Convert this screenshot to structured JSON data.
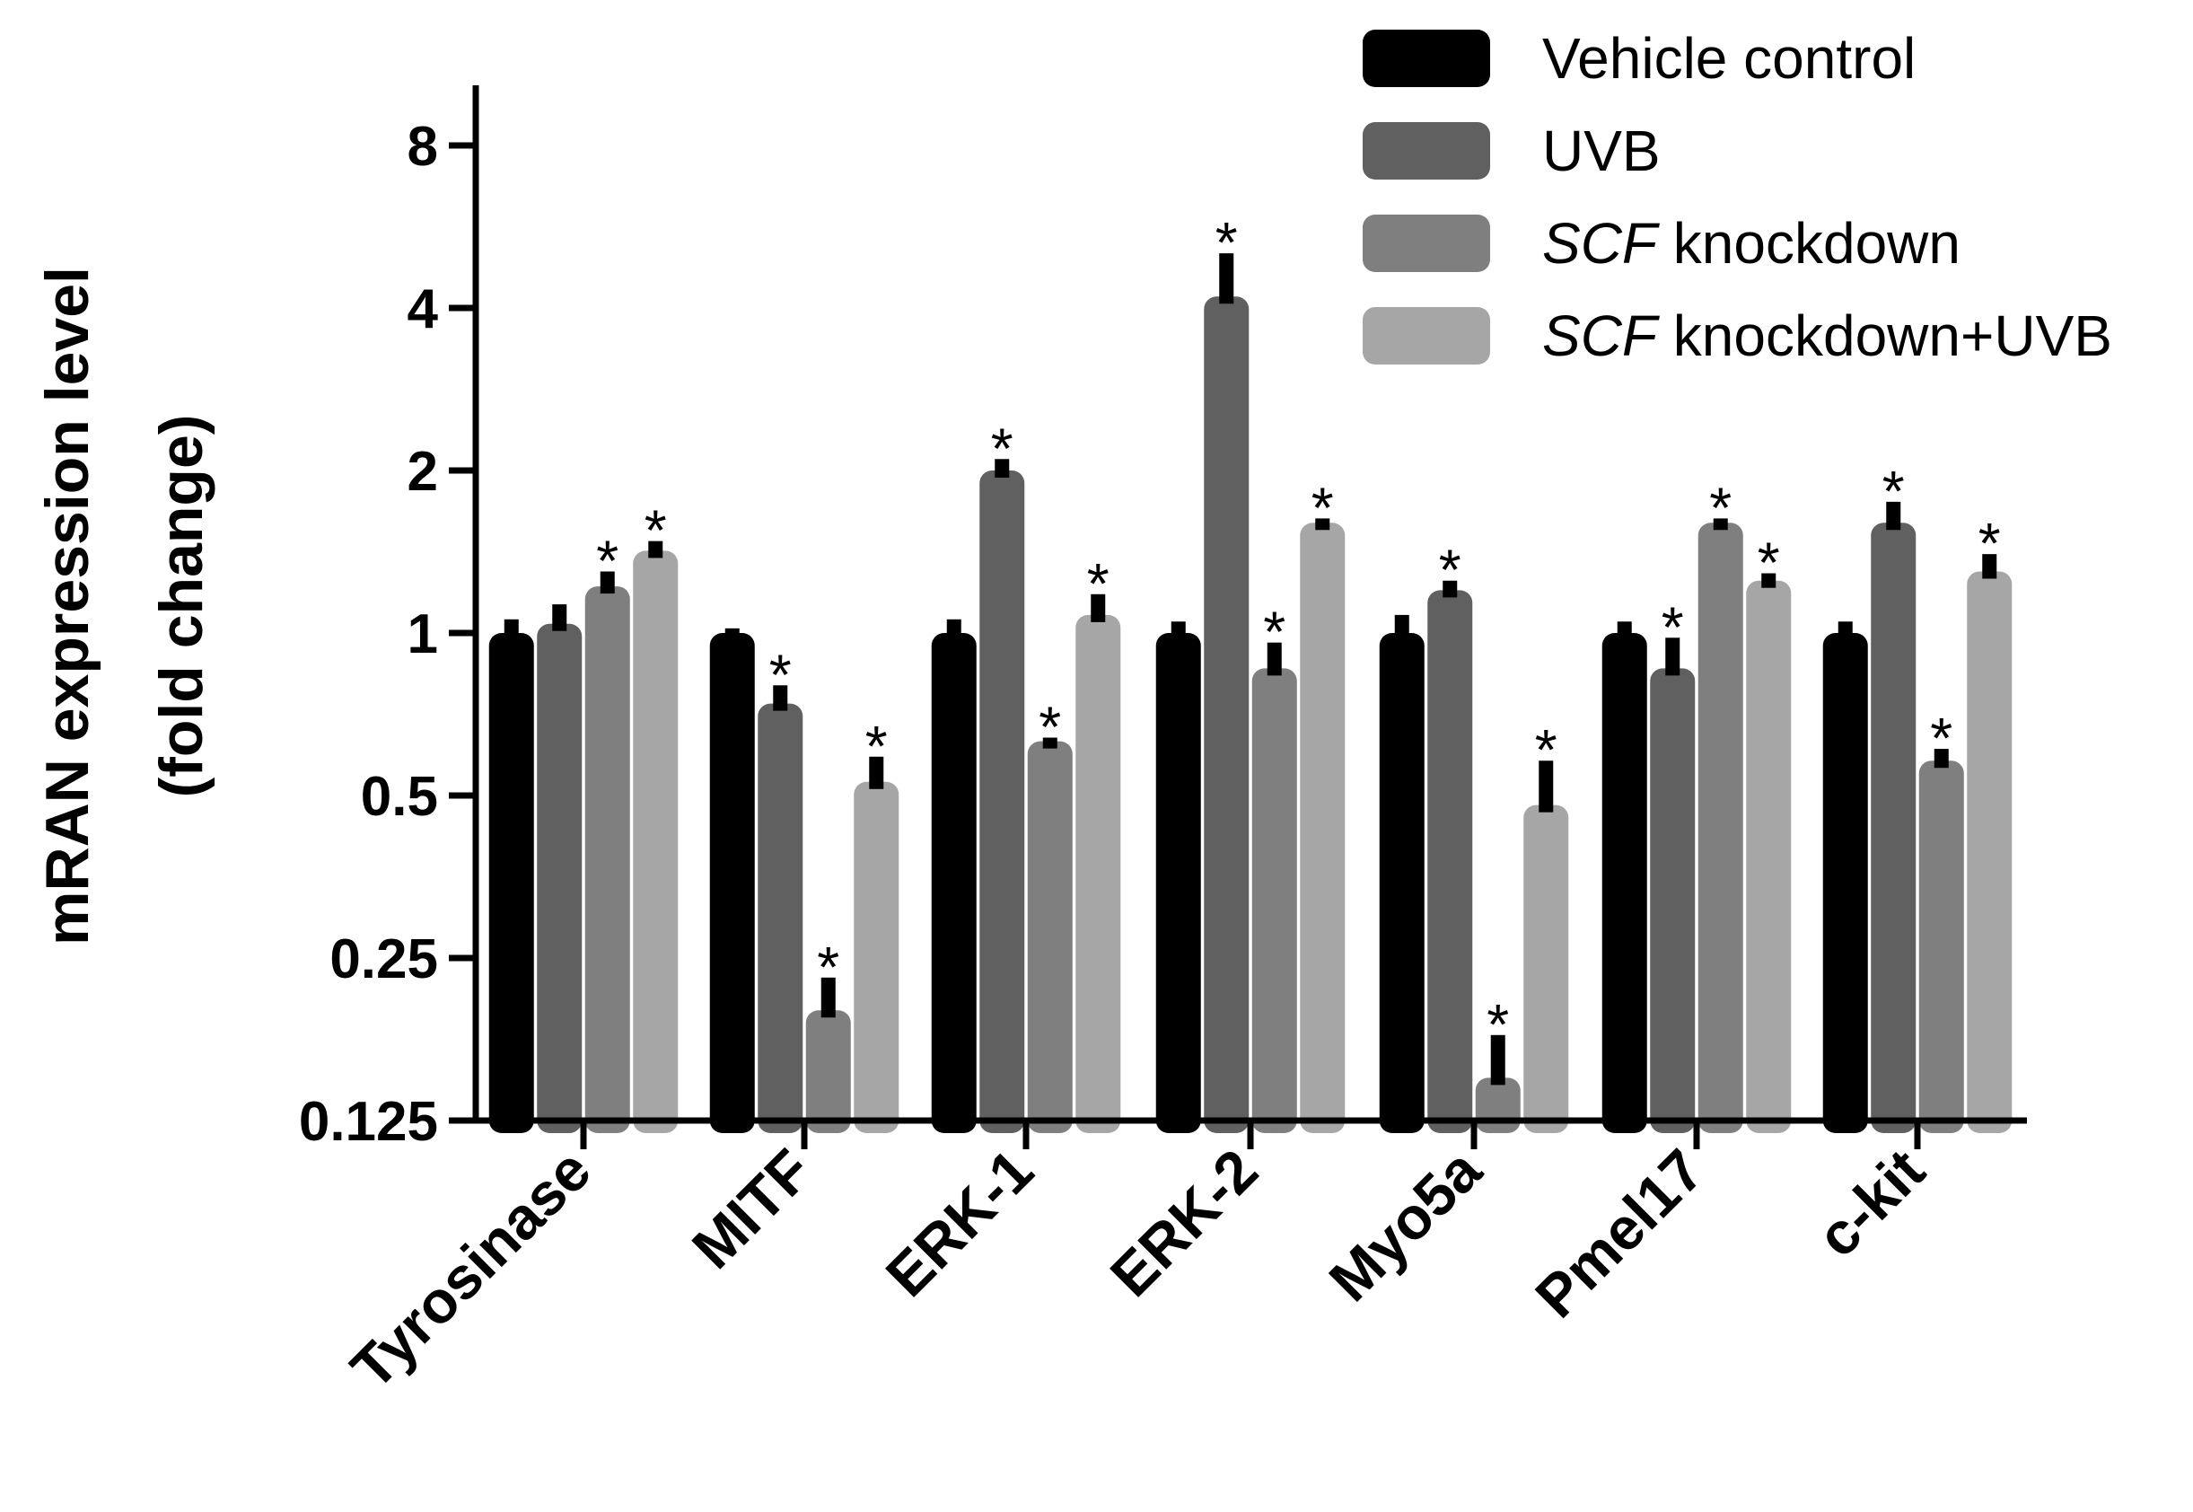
{
  "chart_data": {
    "type": "bar",
    "scale": "log2",
    "ylabel_line1": "mRAN expression level",
    "ylabel_line2": "(fold change)",
    "ylim": [
      0.125,
      10
    ],
    "yticks": [
      {
        "value": 8,
        "label": "8"
      },
      {
        "value": 4,
        "label": "4"
      },
      {
        "value": 2,
        "label": "2"
      },
      {
        "value": 1,
        "label": "1"
      },
      {
        "value": 0.5,
        "label": "0.5"
      },
      {
        "value": 0.25,
        "label": "0.25"
      },
      {
        "value": 0.125,
        "label": "0.125"
      }
    ],
    "categories": [
      "Tyrosinase",
      "MITF",
      "ERK-1",
      "ERK-2",
      "Myo5a",
      "Pmel17",
      "c-kit"
    ],
    "series": [
      {
        "name": "Vehicle control",
        "color": "#000000",
        "values": [
          1.0,
          1.0,
          1.0,
          1.0,
          1.0,
          1.0,
          1.0
        ],
        "errors": [
          0.06,
          0.02,
          0.06,
          0.05,
          0.08,
          0.05,
          0.05
        ],
        "sig": [
          false,
          false,
          false,
          false,
          false,
          false,
          false
        ]
      },
      {
        "name": "UVB",
        "color": "#606060",
        "values": [
          1.04,
          0.74,
          2.0,
          4.2,
          1.2,
          0.86,
          1.6
        ],
        "errors": [
          0.09,
          0.06,
          0.1,
          0.85,
          0.05,
          0.12,
          0.15
        ],
        "sig": [
          false,
          true,
          true,
          true,
          true,
          true,
          true
        ]
      },
      {
        "name": "SCF knockdown",
        "color": "#7f7f7f",
        "values": [
          1.22,
          0.2,
          0.63,
          0.86,
          0.15,
          1.6,
          0.58
        ],
        "errors": [
          0.08,
          0.03,
          0.01,
          0.1,
          0.03,
          0.03,
          0.03
        ],
        "sig": [
          true,
          true,
          true,
          true,
          true,
          true,
          true
        ]
      },
      {
        "name": "SCF knockdown+UVB",
        "color": "#a6a6a6",
        "values": [
          1.42,
          0.53,
          1.08,
          1.6,
          0.48,
          1.25,
          1.3
        ],
        "errors": [
          0.06,
          0.06,
          0.1,
          0.03,
          0.1,
          0.04,
          0.1
        ],
        "sig": [
          true,
          true,
          true,
          true,
          true,
          true,
          true
        ]
      }
    ],
    "sig_marker": "*",
    "legend": [
      {
        "italic": "",
        "text": "Vehicle control"
      },
      {
        "italic": "",
        "text": "UVB"
      },
      {
        "italic": "SCF",
        "text": " knockdown"
      },
      {
        "italic": "SCF",
        "text": " knockdown+UVB"
      }
    ],
    "legend_position": "top-right"
  }
}
